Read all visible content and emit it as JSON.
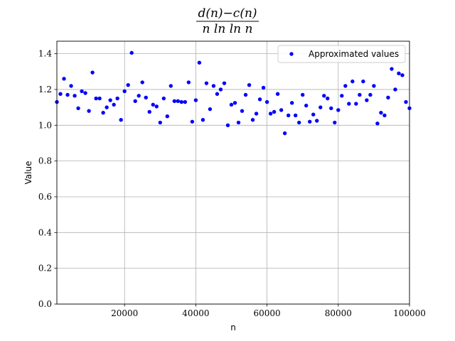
{
  "chart_data": {
    "type": "scatter",
    "title": {
      "numerator": "d(n)−c(n)",
      "denominator": "n ln ln n"
    },
    "xlabel": "n",
    "ylabel": "Value",
    "xlim": [
      1000,
      100000
    ],
    "ylim": [
      0.0,
      1.47
    ],
    "xticks": [
      20000,
      40000,
      60000,
      80000,
      100000
    ],
    "xtick_labels": [
      "20000",
      "40000",
      "60000",
      "80000",
      "100000"
    ],
    "yticks": [
      0.0,
      0.2,
      0.4,
      0.6,
      0.8,
      1.0,
      1.2,
      1.4
    ],
    "ytick_labels": [
      "0.0",
      "0.2",
      "0.4",
      "0.6",
      "0.8",
      "1.0",
      "1.2",
      "1.4"
    ],
    "grid": true,
    "legend_position": "top-right",
    "series": [
      {
        "name": "Approximated values",
        "color": "#0000ff",
        "marker": "circle",
        "x": [
          1000,
          2000,
          3000,
          4000,
          5000,
          6000,
          7000,
          8000,
          9000,
          10000,
          11000,
          12000,
          13000,
          14000,
          15000,
          16000,
          17000,
          18000,
          19000,
          20000,
          21000,
          22000,
          23000,
          24000,
          25000,
          26000,
          27000,
          28000,
          29000,
          30000,
          31000,
          32000,
          33000,
          34000,
          35000,
          36000,
          37000,
          38000,
          39000,
          40000,
          41000,
          42000,
          43000,
          44000,
          45000,
          46000,
          47000,
          48000,
          49000,
          50000,
          51000,
          52000,
          53000,
          54000,
          55000,
          56000,
          57000,
          58000,
          59000,
          60000,
          61000,
          62000,
          63000,
          64000,
          65000,
          66000,
          67000,
          68000,
          69000,
          70000,
          71000,
          72000,
          73000,
          74000,
          75000,
          76000,
          77000,
          78000,
          79000,
          80000,
          81000,
          82000,
          83000,
          84000,
          85000,
          86000,
          87000,
          88000,
          89000,
          90000,
          91000,
          92000,
          93000,
          94000,
          95000,
          96000,
          97000,
          98000,
          99000,
          100000
        ],
        "y": [
          1.13,
          1.175,
          1.26,
          1.17,
          1.22,
          1.165,
          1.095,
          1.19,
          1.18,
          1.08,
          1.295,
          1.15,
          1.15,
          1.07,
          1.1,
          1.14,
          1.115,
          1.15,
          1.03,
          1.19,
          1.225,
          1.405,
          1.135,
          1.165,
          1.24,
          1.155,
          1.075,
          1.115,
          1.105,
          1.015,
          1.15,
          1.05,
          1.22,
          1.135,
          1.135,
          1.13,
          1.13,
          1.24,
          1.02,
          1.14,
          1.35,
          1.03,
          1.235,
          1.09,
          1.22,
          1.175,
          1.2,
          1.235,
          1.0,
          1.115,
          1.125,
          1.015,
          1.08,
          1.17,
          1.225,
          1.03,
          1.065,
          1.145,
          1.21,
          1.13,
          1.065,
          1.075,
          1.175,
          1.085,
          0.955,
          1.055,
          1.125,
          1.055,
          1.015,
          1.17,
          1.11,
          1.02,
          1.06,
          1.025,
          1.1,
          1.165,
          1.15,
          1.095,
          1.015,
          1.085,
          1.165,
          1.22,
          1.12,
          1.245,
          1.12,
          1.17,
          1.245,
          1.14,
          1.17,
          1.22,
          1.01,
          1.07,
          1.055,
          1.155,
          1.315,
          1.2,
          1.29,
          1.28,
          1.13,
          1.095
        ]
      }
    ]
  }
}
